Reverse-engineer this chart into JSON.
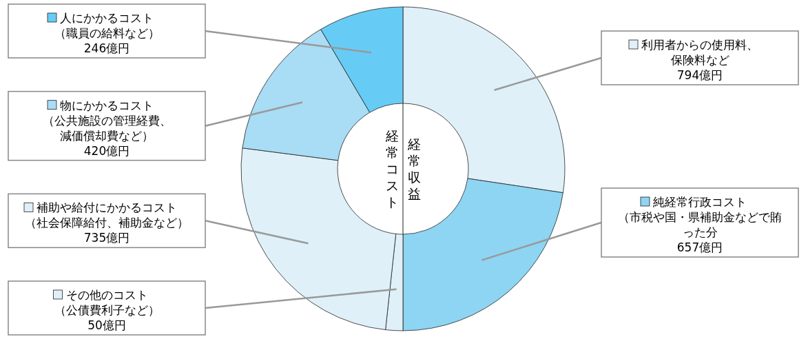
{
  "chart_data": {
    "type": "donut",
    "categories": [
      "利用者からの使用料、保険料など",
      "純経常行政コスト（市税や国・県補助金などで賄った分",
      "その他のコスト（公債費利子など）",
      "補助や給付にかかるコスト（社会保障給付、補助金など）",
      "物にかかるコスト（公共施設の管理経費、減価償却費など）",
      "人にかかるコスト（職員の給料など）"
    ],
    "values": [
      794,
      657,
      50,
      735,
      420,
      246
    ],
    "colors": [
      "#dff0f8",
      "#8dd5f2",
      "#dff0f8",
      "#dff0f8",
      "#a9dcf5",
      "#66ccf5"
    ],
    "value_labels": [
      "794億円",
      "657億円",
      "50億円",
      "735億円",
      "420億円",
      "246億円"
    ],
    "annotations": [
      "経常収益",
      "経常コスト"
    ],
    "legend": "left"
  }
}
